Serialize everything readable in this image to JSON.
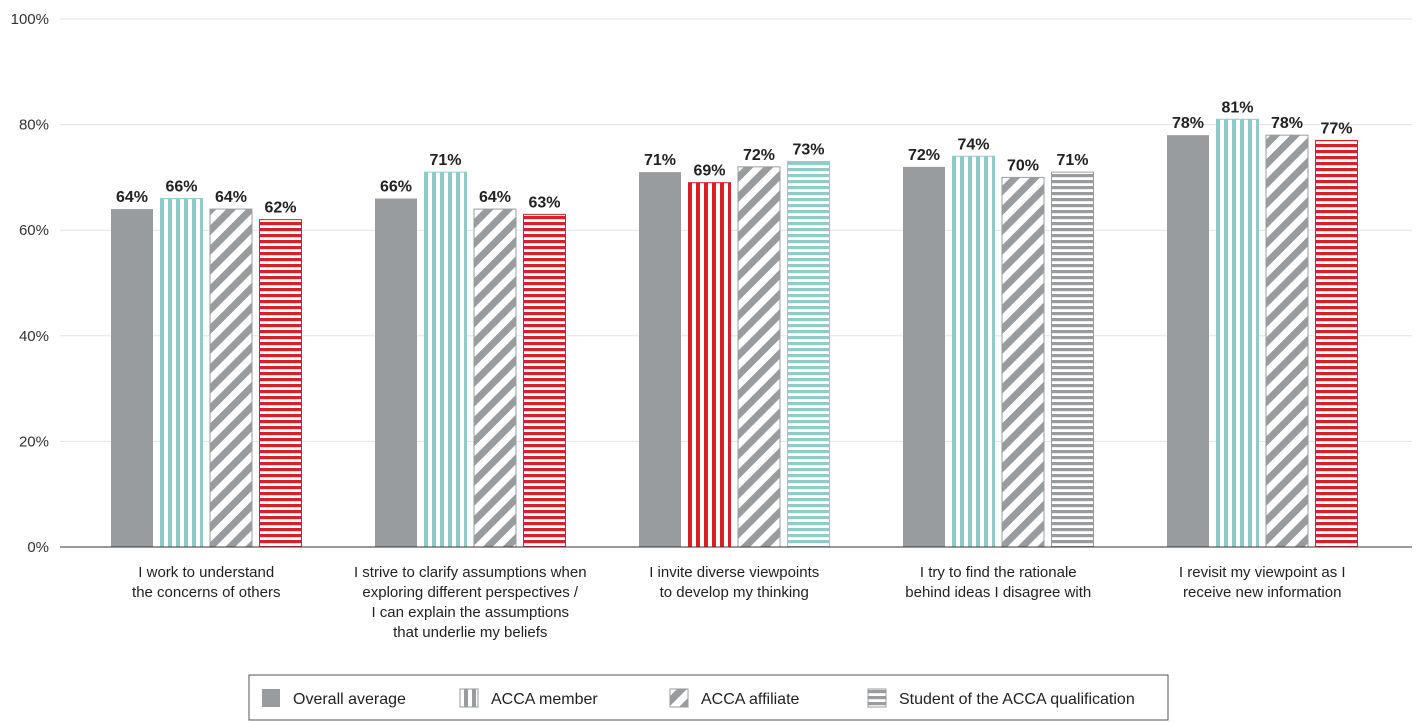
{
  "colors": {
    "gray": "#999c9e",
    "teal": "#8fccc9",
    "red": "#d81f2a",
    "grid": "#e3e3e3",
    "axis": "#333333"
  },
  "chart_data": {
    "type": "bar",
    "title": "",
    "xlabel": "",
    "ylabel": "",
    "ylim": [
      0,
      100
    ],
    "yticks": [
      0,
      20,
      40,
      60,
      80,
      100
    ],
    "ytick_labels": [
      "0%",
      "20%",
      "40%",
      "60%",
      "80%",
      "100%"
    ],
    "grid": true,
    "legend_position": "bottom",
    "categories": [
      [
        "I work to understand",
        "the concerns of others"
      ],
      [
        "I strive to clarify assumptions when",
        "exploring different perspectives /",
        "I can explain the assumptions",
        "that underlie my beliefs"
      ],
      [
        "I invite diverse viewpoints",
        "to develop my thinking"
      ],
      [
        "I try to find the rationale",
        "behind ideas I disagree with"
      ],
      [
        "I revisit my viewpoint as I",
        "receive new information"
      ]
    ],
    "series": [
      {
        "name": "Overall average",
        "values": [
          64,
          66,
          71,
          72,
          78
        ]
      },
      {
        "name": "ACCA member",
        "values": [
          66,
          71,
          69,
          74,
          81
        ]
      },
      {
        "name": "ACCA affiliate",
        "values": [
          64,
          64,
          72,
          70,
          78
        ]
      },
      {
        "name": "Student of the ACCA qualification",
        "values": [
          62,
          63,
          73,
          71,
          77
        ]
      }
    ],
    "value_labels": [
      [
        "64%",
        "66%",
        "64%",
        "62%"
      ],
      [
        "66%",
        "71%",
        "64%",
        "63%"
      ],
      [
        "71%",
        "69%",
        "72%",
        "73%"
      ],
      [
        "72%",
        "74%",
        "70%",
        "71%"
      ],
      [
        "78%",
        "81%",
        "78%",
        "77%"
      ]
    ],
    "bar_styles": [
      [
        "gray-solid",
        "teal-vertical",
        "gray-diagonal",
        "red-horizontal"
      ],
      [
        "gray-solid",
        "teal-vertical",
        "gray-diagonal",
        "red-horizontal"
      ],
      [
        "gray-solid",
        "red-vertical",
        "gray-diagonal",
        "teal-horizontal"
      ],
      [
        "gray-solid",
        "teal-vertical",
        "gray-diagonal",
        "gray-horizontal"
      ],
      [
        "gray-solid",
        "teal-vertical",
        "gray-diagonal",
        "red-horizontal"
      ]
    ],
    "legend": [
      {
        "label": "Overall average",
        "style": "legend-gray-solid"
      },
      {
        "label": "ACCA member",
        "style": "legend-gray-vertical"
      },
      {
        "label": "ACCA affiliate",
        "style": "legend-gray-diagonal"
      },
      {
        "label": "Student of the ACCA qualification",
        "style": "legend-gray-horizontal"
      }
    ]
  }
}
